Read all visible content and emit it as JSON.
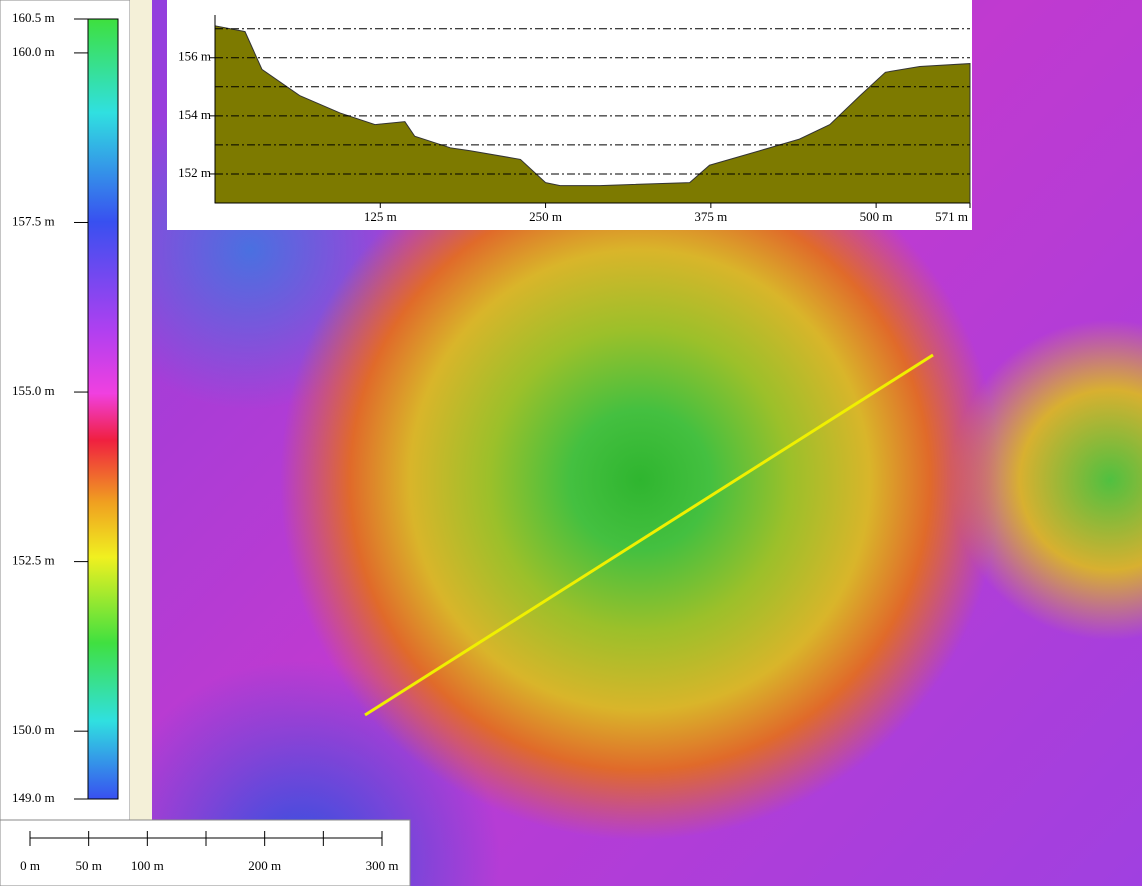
{
  "legend": {
    "lim": [
      149.0,
      160.5
    ],
    "ticks": [
      {
        "value": 160.5,
        "label": "160.5 m"
      },
      {
        "value": 160.0,
        "label": "160.0 m"
      },
      {
        "value": 157.5,
        "label": "157.5 m"
      },
      {
        "value": 155.0,
        "label": "155.0 m"
      },
      {
        "value": 152.5,
        "label": "152.5 m"
      },
      {
        "value": 150.0,
        "label": "150.0 m"
      },
      {
        "value": 149.0,
        "label": "149.0 m"
      }
    ]
  },
  "profile": {
    "type": "area",
    "color": "#7d7a00",
    "xlim": [
      0,
      571
    ],
    "ylim": [
      151.0,
      157.3
    ],
    "xticks": [
      {
        "value": 125,
        "label": "125 m"
      },
      {
        "value": 250,
        "label": "250 m"
      },
      {
        "value": 375,
        "label": "375 m"
      },
      {
        "value": 500,
        "label": "500 m"
      },
      {
        "value": 571,
        "label": "571 m"
      }
    ],
    "yticks": [
      {
        "value": 152,
        "label": "152 m"
      },
      {
        "value": 154,
        "label": "154 m"
      },
      {
        "value": 156,
        "label": "156 m"
      }
    ],
    "grid_lines": [
      152,
      153,
      154,
      155,
      156,
      157
    ],
    "x": [
      0,
      22.7,
      35.5,
      64,
      94.5,
      121,
      143.6,
      151,
      178,
      193,
      231,
      250,
      261,
      291,
      359,
      374,
      412,
      442,
      465,
      488,
      507,
      533,
      571
    ],
    "values": [
      157.1,
      156.9,
      155.6,
      154.7,
      154.1,
      153.7,
      153.8,
      153.3,
      152.9,
      152.8,
      152.5,
      151.7,
      151.6,
      151.6,
      151.7,
      152.3,
      152.8,
      153.2,
      153.7,
      154.7,
      155.5,
      155.7,
      155.8
    ]
  },
  "scale_bar": {
    "lim": [
      0,
      300
    ],
    "ticks": [
      {
        "value": 0,
        "label": "0 m"
      },
      {
        "value": 50,
        "label": "50 m"
      },
      {
        "value": 100,
        "label": "100 m"
      },
      {
        "value": 200,
        "label": "200 m"
      },
      {
        "value": 300,
        "label": "300 m"
      }
    ],
    "minor_ticks": [
      150,
      250
    ]
  }
}
